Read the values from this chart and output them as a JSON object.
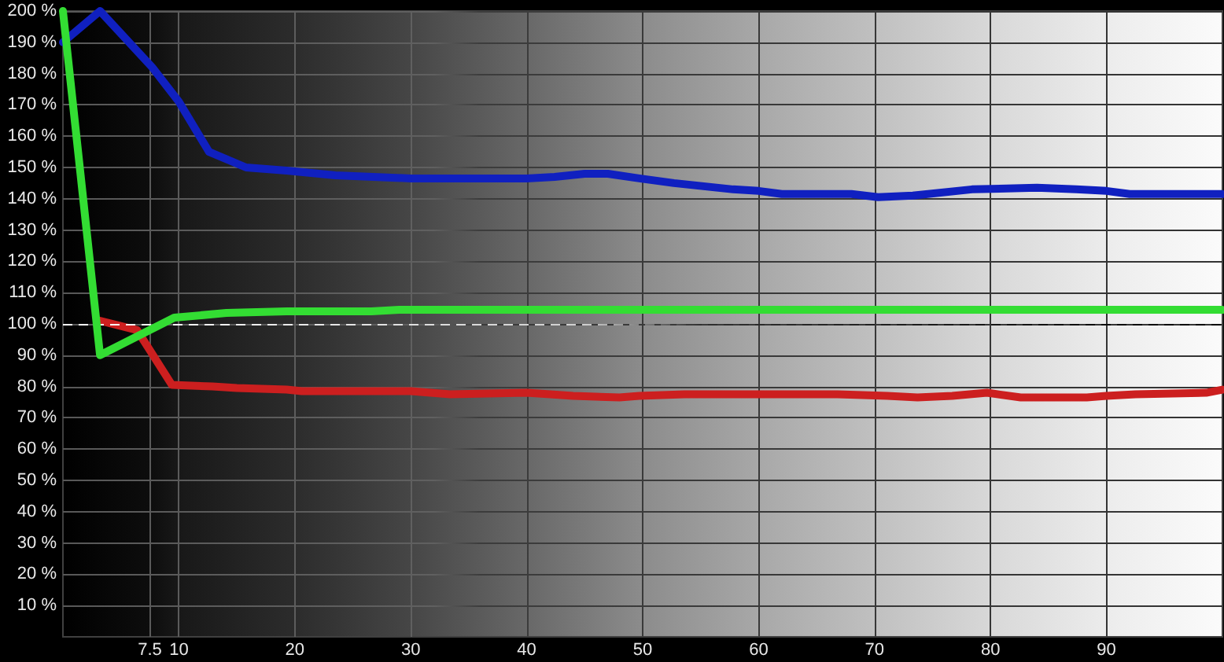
{
  "chart_data": {
    "type": "line",
    "xlim": [
      0,
      100
    ],
    "xticks": [
      7.5,
      10,
      20,
      30,
      40,
      50,
      60,
      70,
      80,
      90
    ],
    "ylim": [
      0,
      200
    ],
    "yticks": [
      {
        "value": 10,
        "label": "10 %"
      },
      {
        "value": 20,
        "label": "20 %"
      },
      {
        "value": 30,
        "label": "30 %"
      },
      {
        "value": 40,
        "label": "40 %"
      },
      {
        "value": 50,
        "label": "50 %"
      },
      {
        "value": 60,
        "label": "60 %"
      },
      {
        "value": 70,
        "label": "70 %"
      },
      {
        "value": 80,
        "label": "80 %"
      },
      {
        "value": 90,
        "label": "90 %"
      },
      {
        "value": 100,
        "label": "100 %"
      },
      {
        "value": 110,
        "label": "110 %"
      },
      {
        "value": 120,
        "label": "120 %"
      },
      {
        "value": 130,
        "label": "130 %"
      },
      {
        "value": 140,
        "label": "140 %"
      },
      {
        "value": 150,
        "label": "150 %"
      },
      {
        "value": 160,
        "label": "160 %"
      },
      {
        "value": 170,
        "label": "170 %"
      },
      {
        "value": 180,
        "label": "180 %"
      },
      {
        "value": 190,
        "label": "190 %"
      },
      {
        "value": 200,
        "label": "200 %"
      }
    ],
    "grid": true,
    "marker": "none",
    "line_style": "solid",
    "ref_lines": [
      {
        "axis": "y",
        "value": 100,
        "line_style": "dashed"
      }
    ],
    "series": [
      {
        "color": "#cc1f1f",
        "x": [
          3.2,
          6.4,
          9.4,
          12.9,
          15,
          19.3,
          20.6,
          30,
          33.4,
          40,
          44,
          48,
          49.7,
          53.6,
          66.8,
          71.1,
          73.7,
          76.7,
          79.7,
          82.6,
          88.3,
          90,
          92.5,
          98.6,
          100
        ],
        "values": [
          101,
          98,
          80.5,
          80,
          79.5,
          79,
          78.5,
          78.5,
          77.5,
          78,
          77,
          76.5,
          77,
          77.5,
          77.5,
          77,
          76.5,
          77,
          78,
          76.5,
          76.5,
          77,
          77.5,
          78,
          79
        ]
      },
      {
        "color": "#1020c0",
        "x": [
          0,
          3.2,
          7.7,
          10,
          12.6,
          15.8,
          19.3,
          23.5,
          30,
          40,
          42.4,
          45,
          47,
          49.7,
          52.7,
          57.8,
          60,
          62,
          68,
          70.3,
          73.3,
          78.4,
          84,
          87.4,
          90,
          92,
          100
        ],
        "values": [
          190,
          200,
          182,
          171,
          155,
          150,
          149,
          147.5,
          146.5,
          146.5,
          147,
          148,
          148,
          146.5,
          145,
          143,
          142.5,
          141.5,
          141.5,
          140.5,
          141,
          143,
          143.5,
          143,
          142.5,
          141.5,
          141.5
        ]
      },
      {
        "color": "#33dd33",
        "x": [
          0,
          3.2,
          9.6,
          14.1,
          19.3,
          26.6,
          29,
          100
        ],
        "values": [
          200,
          90,
          102,
          103.5,
          104,
          104,
          104.5,
          104.5
        ]
      }
    ]
  }
}
